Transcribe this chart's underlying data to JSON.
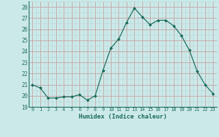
{
  "x": [
    0,
    1,
    2,
    3,
    4,
    5,
    6,
    7,
    8,
    9,
    10,
    11,
    12,
    13,
    14,
    15,
    16,
    17,
    18,
    19,
    20,
    21,
    22,
    23
  ],
  "y": [
    21.0,
    20.7,
    19.8,
    19.8,
    19.9,
    19.9,
    20.1,
    19.6,
    20.0,
    22.3,
    24.3,
    25.1,
    26.6,
    27.9,
    27.1,
    26.4,
    26.8,
    26.8,
    26.3,
    25.4,
    24.1,
    22.2,
    21.0,
    20.2
  ],
  "xlim": [
    -0.5,
    23.5
  ],
  "ylim": [
    19,
    28.5
  ],
  "yticks": [
    19,
    20,
    21,
    22,
    23,
    24,
    25,
    26,
    27,
    28
  ],
  "xticks": [
    0,
    1,
    2,
    3,
    4,
    5,
    6,
    7,
    8,
    9,
    10,
    11,
    12,
    13,
    14,
    15,
    16,
    17,
    18,
    19,
    20,
    21,
    22,
    23
  ],
  "xlabel": "Humidex (Indice chaleur)",
  "line_color": "#1a6b5a",
  "marker": "D",
  "marker_size": 2.0,
  "bg_color": "#cce9e9",
  "grid_color_major": "#c4a8a8",
  "grid_color_minor": "#b8d8d8",
  "title": ""
}
